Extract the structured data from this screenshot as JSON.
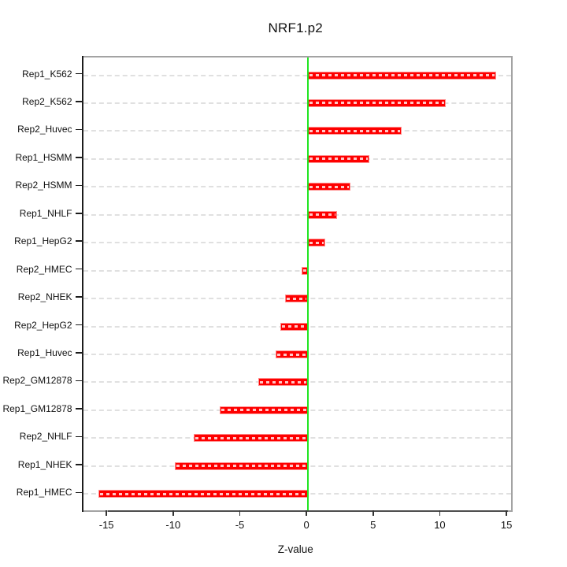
{
  "chart_data": {
    "type": "bar",
    "orientation": "horizontal",
    "title": "NRF1.p2",
    "xlabel": "Z-value",
    "ylabel": "",
    "categories": [
      "Rep1_K562",
      "Rep2_K562",
      "Rep2_Huvec",
      "Rep1_HSMM",
      "Rep2_HSMM",
      "Rep1_NHLF",
      "Rep1_HepG2",
      "Rep2_HMEC",
      "Rep2_NHEK",
      "Rep2_HepG2",
      "Rep1_Huvec",
      "Rep2_GM12878",
      "Rep1_GM12878",
      "Rep2_NHLF",
      "Rep1_NHEK",
      "Rep1_HMEC"
    ],
    "values": [
      14.1,
      10.3,
      7.0,
      4.6,
      3.2,
      2.2,
      1.3,
      -0.5,
      -1.7,
      -2.1,
      -2.4,
      -3.7,
      -6.6,
      -8.6,
      -10.0,
      -15.7
    ],
    "xticks": [
      -15,
      -10,
      -5,
      0,
      5,
      10,
      15
    ],
    "xlim": [
      -16.87,
      15.23
    ],
    "grid": "dashed horizontal line per category",
    "zero_line_at": 0,
    "legend": "none",
    "colors": {
      "bar": "#fe0000",
      "bar_border": "#ff8f8f",
      "bar_dash_overlay": "#ffffff",
      "zero_line": "#22e522",
      "grid": "#e0e0e0",
      "box_border": "#a3a3a3",
      "y_axis_line": "#1c1c1c",
      "x_axis_line": "#4d4d4d",
      "text": "#111111"
    }
  }
}
